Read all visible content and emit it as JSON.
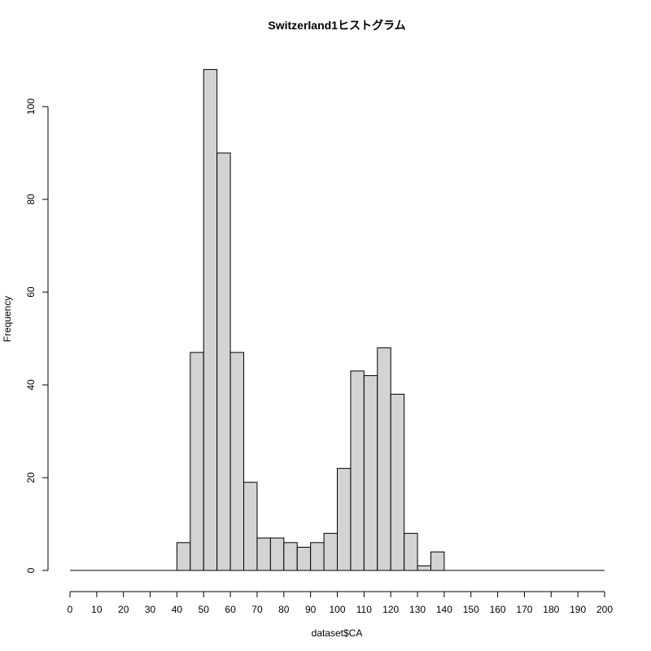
{
  "chart_data": {
    "type": "bar",
    "title": "Switzerland1ヒストグラム",
    "xlabel": "dataset$CA",
    "ylabel": "Frequency",
    "bin_width": 5,
    "xlim": [
      0,
      200
    ],
    "ylim": [
      0,
      108
    ],
    "x_ticks": [
      0,
      10,
      20,
      30,
      40,
      50,
      60,
      70,
      80,
      90,
      100,
      110,
      120,
      130,
      140,
      150,
      160,
      170,
      180,
      190,
      200
    ],
    "y_ticks": [
      0,
      20,
      40,
      60,
      80,
      100
    ],
    "bins": [
      {
        "start": 0,
        "end": 5,
        "count": 0
      },
      {
        "start": 5,
        "end": 10,
        "count": 0
      },
      {
        "start": 10,
        "end": 15,
        "count": 0
      },
      {
        "start": 15,
        "end": 20,
        "count": 0
      },
      {
        "start": 20,
        "end": 25,
        "count": 0
      },
      {
        "start": 25,
        "end": 30,
        "count": 0
      },
      {
        "start": 30,
        "end": 35,
        "count": 0
      },
      {
        "start": 35,
        "end": 40,
        "count": 0
      },
      {
        "start": 40,
        "end": 45,
        "count": 6
      },
      {
        "start": 45,
        "end": 50,
        "count": 47
      },
      {
        "start": 50,
        "end": 55,
        "count": 108
      },
      {
        "start": 55,
        "end": 60,
        "count": 90
      },
      {
        "start": 60,
        "end": 65,
        "count": 47
      },
      {
        "start": 65,
        "end": 70,
        "count": 19
      },
      {
        "start": 70,
        "end": 75,
        "count": 7
      },
      {
        "start": 75,
        "end": 80,
        "count": 7
      },
      {
        "start": 80,
        "end": 85,
        "count": 6
      },
      {
        "start": 85,
        "end": 90,
        "count": 5
      },
      {
        "start": 90,
        "end": 95,
        "count": 6
      },
      {
        "start": 95,
        "end": 100,
        "count": 8
      },
      {
        "start": 100,
        "end": 105,
        "count": 22
      },
      {
        "start": 105,
        "end": 110,
        "count": 43
      },
      {
        "start": 110,
        "end": 115,
        "count": 42
      },
      {
        "start": 115,
        "end": 120,
        "count": 48
      },
      {
        "start": 120,
        "end": 125,
        "count": 38
      },
      {
        "start": 125,
        "end": 130,
        "count": 8
      },
      {
        "start": 130,
        "end": 135,
        "count": 1
      },
      {
        "start": 135,
        "end": 140,
        "count": 4
      },
      {
        "start": 140,
        "end": 145,
        "count": 0
      },
      {
        "start": 145,
        "end": 150,
        "count": 0
      },
      {
        "start": 150,
        "end": 155,
        "count": 0
      },
      {
        "start": 155,
        "end": 160,
        "count": 0
      },
      {
        "start": 160,
        "end": 165,
        "count": 0
      },
      {
        "start": 165,
        "end": 170,
        "count": 0
      },
      {
        "start": 170,
        "end": 175,
        "count": 0
      },
      {
        "start": 175,
        "end": 180,
        "count": 0
      },
      {
        "start": 180,
        "end": 185,
        "count": 0
      },
      {
        "start": 185,
        "end": 190,
        "count": 0
      },
      {
        "start": 190,
        "end": 195,
        "count": 0
      },
      {
        "start": 195,
        "end": 200,
        "count": 0
      }
    ],
    "bar_fill": "#d3d3d3",
    "bar_stroke": "#000000",
    "grid": false,
    "legend": "none"
  }
}
